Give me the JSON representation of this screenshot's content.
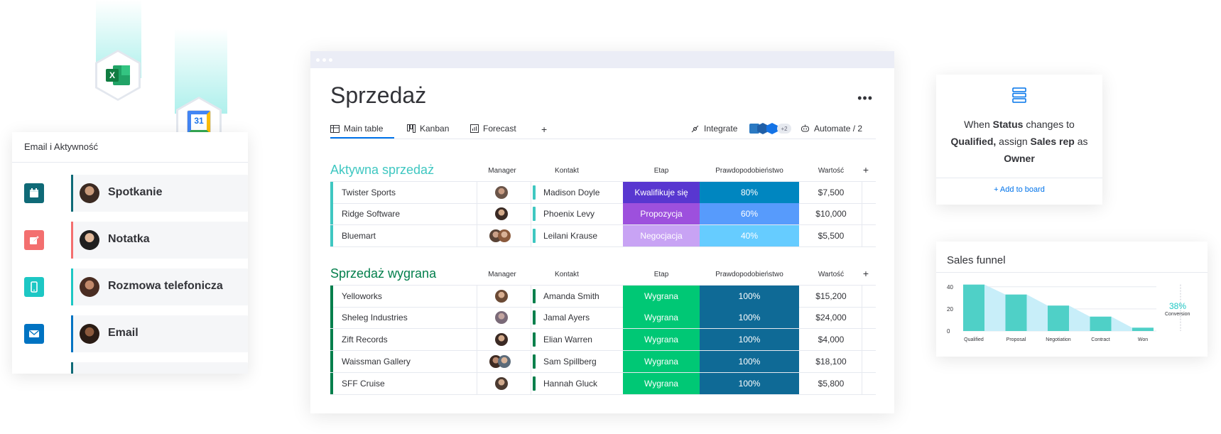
{
  "activity": {
    "title": "Email i Aktywność",
    "items": [
      {
        "label": "Spotkanie",
        "icon": "calendar-icon",
        "color": "#0f6a77"
      },
      {
        "label": "Notatka",
        "icon": "note-edit-icon",
        "color": "#f36f6f"
      },
      {
        "label": "Rozmowa telefonicza",
        "icon": "phone-icon",
        "color": "#1dc7c4"
      },
      {
        "label": "Email",
        "icon": "email-icon",
        "color": "#0073c2"
      }
    ]
  },
  "integrations": [
    {
      "icon": "excel-icon",
      "text": "X"
    },
    {
      "icon": "google-calendar-icon",
      "text": "31"
    }
  ],
  "board": {
    "title": "Sprzedaż",
    "more_label": "•••",
    "views": [
      {
        "label": "Main table",
        "icon": "table-icon"
      },
      {
        "label": "Kanban",
        "icon": "kanban-icon"
      },
      {
        "label": "Forecast",
        "icon": "forecast-icon"
      }
    ],
    "add_view": "+",
    "integrate_label": "Integrate",
    "integrate_more": "+2",
    "automate_label": "Automate / 2",
    "columns": [
      "Manager",
      "Kontakt",
      "Etap",
      "Prawdopodobieństwo",
      "Wartość"
    ],
    "add_column": "+",
    "groups": [
      {
        "title": "Aktywna sprzedaż",
        "color": "#3fc7c1",
        "rows": [
          {
            "name": "Twister Sports",
            "contact": "Madison Doyle",
            "stage": "Kwalifikuje się",
            "stage_color": "#5837d0",
            "prob": "80%",
            "prob_color": "#0086c0",
            "value": "$7,500"
          },
          {
            "name": "Ridge Software",
            "contact": "Phoenix Levy",
            "stage": "Propozycja",
            "stage_color": "#9d50dd",
            "prob": "60%",
            "prob_color": "#579bfc",
            "value": "$10,000"
          },
          {
            "name": "Bluemart",
            "contact": "Leilani Krause",
            "stage": "Negocjacja",
            "stage_color": "#c8a3f4",
            "prob": "40%",
            "prob_color": "#66ccff",
            "value": "$5,500"
          }
        ]
      },
      {
        "title": "Sprzedaż wygrana",
        "color": "#037f4c",
        "rows": [
          {
            "name": "Yelloworks",
            "contact": "Amanda Smith",
            "stage": "Wygrana",
            "stage_color": "#00c875",
            "prob": "100%",
            "prob_color": "#0f6a96",
            "value": "$15,200"
          },
          {
            "name": "Sheleg Industries",
            "contact": "Jamal Ayers",
            "stage": "Wygrana",
            "stage_color": "#00c875",
            "prob": "100%",
            "prob_color": "#0f6a96",
            "value": "$24,000"
          },
          {
            "name": "Zift Records",
            "contact": "Elian Warren",
            "stage": "Wygrana",
            "stage_color": "#00c875",
            "prob": "100%",
            "prob_color": "#0f6a96",
            "value": "$4,000"
          },
          {
            "name": "Waissman Gallery",
            "contact": "Sam Spillberg",
            "stage": "Wygrana",
            "stage_color": "#00c875",
            "prob": "100%",
            "prob_color": "#0f6a96",
            "value": "$18,100"
          },
          {
            "name": "SFF Cruise",
            "contact": "Hannah Gluck",
            "stage": "Wygrana",
            "stage_color": "#00c875",
            "prob": "100%",
            "prob_color": "#0f6a96",
            "value": "$5,800"
          }
        ]
      }
    ]
  },
  "automation": {
    "icon": "stack-list-icon",
    "p1": "When ",
    "b1": "Status",
    "p2": " changes to ",
    "b2": "Qualified,",
    "p3": " assign ",
    "b3": "Sales rep",
    "p4": " as ",
    "b4": "Owner",
    "add_label": "+ Add to board"
  },
  "funnel": {
    "title": "Sales funnel",
    "conversion_value": "38%",
    "conversion_label": "Conversion"
  },
  "chart_data": {
    "type": "bar",
    "title": "Sales funnel",
    "categories": [
      "Qualified",
      "Proposal",
      "Negotiation",
      "Contract",
      "Won"
    ],
    "values": [
      42,
      33,
      23,
      13,
      3
    ],
    "yticks": [
      0,
      20,
      40
    ],
    "ylim": [
      0,
      45
    ],
    "bar_color": "#4fd0c7",
    "fill_color": "#c8eef9",
    "annotation": "38% Conversion"
  }
}
